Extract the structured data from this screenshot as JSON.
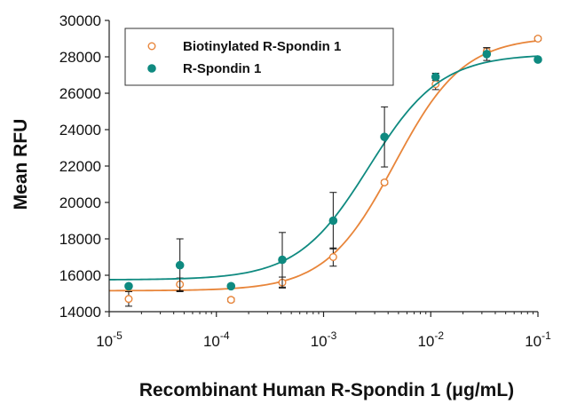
{
  "chart_data": {
    "type": "scatter",
    "xlabel": "Recombinant Human R-Spondin 1 (μg/mL)",
    "ylabel": "Mean RFU",
    "xscale": "log",
    "xlim": [
      1e-05,
      0.1
    ],
    "ylim": [
      14000,
      30000
    ],
    "x_ticks": [
      1e-05,
      0.0001,
      0.001,
      0.01,
      0.1
    ],
    "x_tick_labels": [
      {
        "base": "10",
        "exp": "-5"
      },
      {
        "base": "10",
        "exp": "-4"
      },
      {
        "base": "10",
        "exp": "-3"
      },
      {
        "base": "10",
        "exp": "-2"
      },
      {
        "base": "10",
        "exp": "-1"
      }
    ],
    "y_ticks": [
      14000,
      16000,
      18000,
      20000,
      22000,
      24000,
      26000,
      28000,
      30000
    ],
    "y_tick_labels": [
      "14000",
      "16000",
      "18000",
      "20000",
      "22000",
      "24000",
      "26000",
      "28000",
      "30000"
    ],
    "grid": false,
    "legend_position": "top-left",
    "series": [
      {
        "name": "Biotinylated R-Spondin 1",
        "color": "#e8853a",
        "marker": "open-circle",
        "x": [
          1.52e-05,
          4.57e-05,
          0.000137,
          0.000412,
          0.00123,
          0.0037,
          0.0111,
          0.0333,
          0.1
        ],
        "y": [
          14700,
          15500,
          14650,
          15600,
          17000,
          21100,
          26500,
          28300,
          29000
        ],
        "error": [
          400,
          350,
          100,
          300,
          500,
          100,
          300,
          200,
          100
        ],
        "fit": {
          "bottom": 15150,
          "top": 29100,
          "ec50": 0.0046,
          "hill": 1.35
        }
      },
      {
        "name": "R-Spondin 1",
        "color": "#0f8a80",
        "marker": "filled-circle",
        "x": [
          1.52e-05,
          4.57e-05,
          0.000137,
          0.000412,
          0.00123,
          0.0037,
          0.0111,
          0.0333,
          0.1
        ],
        "y": [
          15400,
          16550,
          15400,
          16850,
          19000,
          23600,
          26900,
          28150,
          27850
        ],
        "error": [
          100,
          1450,
          100,
          1500,
          1550,
          1650,
          200,
          350,
          100
        ],
        "fit": {
          "bottom": 15750,
          "top": 28150,
          "ec50": 0.00265,
          "hill": 1.3
        }
      }
    ]
  }
}
